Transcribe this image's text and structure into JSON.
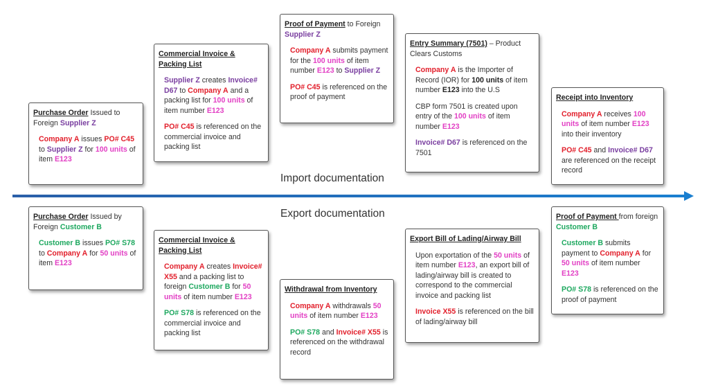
{
  "labels": {
    "import": "Import documentation",
    "export": "Export documentation"
  },
  "colors": {
    "company_a": "#e2202c",
    "supplier_z": "#7a3fa0",
    "units": "#e23fc4",
    "customer_b": "#1ea85f",
    "arrow": "#1f6fc0"
  },
  "boxes": [
    {
      "title": [
        [
          "Purchase Order",
          "u"
        ],
        [
          " Issued to Foreign ",
          ""
        ],
        [
          "Supplier Z",
          "p"
        ]
      ],
      "paras": [
        [
          [
            "Company A",
            "r"
          ],
          [
            " issues ",
            ""
          ],
          [
            "PO# C45",
            "r"
          ],
          [
            " to ",
            ""
          ],
          [
            "Supplier Z",
            "p"
          ],
          [
            " for ",
            ""
          ],
          [
            "100 units",
            "m"
          ],
          [
            " of item ",
            ""
          ],
          [
            "E123",
            "m"
          ]
        ]
      ]
    },
    {
      "title": [
        [
          "Commercial Invoice & Packing List",
          "u"
        ]
      ],
      "paras": [
        [
          [
            "Supplier Z",
            "p"
          ],
          [
            " creates ",
            ""
          ],
          [
            "Invoice# D67",
            "p"
          ],
          [
            " to ",
            ""
          ],
          [
            "Company A",
            "r"
          ],
          [
            " and a packing list for ",
            ""
          ],
          [
            "100 units",
            "m"
          ],
          [
            " of item number ",
            ""
          ],
          [
            "E123",
            "m"
          ]
        ],
        [
          [
            "PO# C45",
            "r"
          ],
          [
            " is referenced on the commercial invoice and packing list",
            ""
          ]
        ]
      ]
    },
    {
      "title": [
        [
          "Proof of Payment",
          "u"
        ],
        [
          " to Foreign ",
          ""
        ],
        [
          "Supplier Z",
          "p"
        ]
      ],
      "paras": [
        [
          [
            "Company A",
            "r"
          ],
          [
            " submits payment for the ",
            ""
          ],
          [
            "100 units",
            "m"
          ],
          [
            " of item number ",
            ""
          ],
          [
            "E123",
            "m"
          ],
          [
            " to ",
            ""
          ],
          [
            "Supplier Z",
            "p"
          ]
        ],
        [
          [
            "PO# C45",
            "r"
          ],
          [
            " is referenced on the proof of payment",
            ""
          ]
        ]
      ]
    },
    {
      "title": [
        [
          "Entry Summary (7501)",
          "u"
        ],
        [
          " – Product Clears Customs",
          ""
        ]
      ],
      "paras": [
        [
          [
            "Company A",
            "r"
          ],
          [
            " is the Importer of Record (IOR) for ",
            ""
          ],
          [
            "100 units",
            "b"
          ],
          [
            " of item number ",
            ""
          ],
          [
            "E123",
            "b"
          ],
          [
            " into the U.S",
            ""
          ]
        ],
        [
          [
            "CBP form 7501 is created upon entry of the ",
            ""
          ],
          [
            "100 units",
            "m"
          ],
          [
            " of item number ",
            ""
          ],
          [
            "E123",
            "m"
          ]
        ],
        [
          [
            "Invoice# D67",
            "p"
          ],
          [
            " is referenced on the 7501",
            ""
          ]
        ]
      ]
    },
    {
      "title": [
        [
          "Receipt into Inventory",
          "u"
        ]
      ],
      "paras": [
        [
          [
            "Company A",
            "r"
          ],
          [
            " receives ",
            ""
          ],
          [
            "100 units",
            "m"
          ],
          [
            " of item number ",
            ""
          ],
          [
            "E123",
            "m"
          ],
          [
            " into their inventory",
            ""
          ]
        ],
        [
          [
            "PO# C45",
            "r"
          ],
          [
            " and ",
            ""
          ],
          [
            "Invoice# D67",
            "p"
          ],
          [
            " are referenced on the receipt record",
            ""
          ]
        ]
      ]
    },
    {
      "title": [
        [
          "Purchase Order",
          "u"
        ],
        [
          " Issued by Foreign ",
          ""
        ],
        [
          "Customer B",
          "g"
        ]
      ],
      "paras": [
        [
          [
            "Customer B",
            "g"
          ],
          [
            " issues ",
            ""
          ],
          [
            "PO# S78",
            "g"
          ],
          [
            " to ",
            ""
          ],
          [
            "Company A",
            "r"
          ],
          [
            " for ",
            ""
          ],
          [
            "50 units",
            "m"
          ],
          [
            " of item ",
            ""
          ],
          [
            "E123",
            "m"
          ]
        ]
      ]
    },
    {
      "title": [
        [
          "Commercial Invoice & Packing List",
          "u"
        ]
      ],
      "paras": [
        [
          [
            "Company A",
            "r"
          ],
          [
            " creates ",
            ""
          ],
          [
            "Invoice# X55",
            "r"
          ],
          [
            " and a packing list to foreign ",
            ""
          ],
          [
            "Customer B",
            "g"
          ],
          [
            " for ",
            ""
          ],
          [
            "50 units",
            "m"
          ],
          [
            " of item number ",
            ""
          ],
          [
            "E123",
            "m"
          ]
        ],
        [
          [
            "PO# S78",
            "g"
          ],
          [
            " is referenced on the commercial invoice and packing list",
            ""
          ]
        ]
      ]
    },
    {
      "title": [
        [
          "Withdrawal from Inventory",
          "u"
        ]
      ],
      "paras": [
        [
          [
            "Company A",
            "r"
          ],
          [
            " withdrawals ",
            ""
          ],
          [
            "50 units",
            "m"
          ],
          [
            " of item number ",
            ""
          ],
          [
            "E123",
            "m"
          ]
        ],
        [
          [
            "PO# S78",
            "g"
          ],
          [
            " and ",
            ""
          ],
          [
            "Invoice# X55",
            "r"
          ],
          [
            " is referenced on the withdrawal record",
            ""
          ]
        ]
      ]
    },
    {
      "title": [
        [
          "Export Bill of Lading/Airway Bill",
          "u"
        ]
      ],
      "paras": [
        [
          [
            "Upon exportation of the ",
            ""
          ],
          [
            "50 units",
            "m"
          ],
          [
            " of item number ",
            ""
          ],
          [
            "E123",
            "m"
          ],
          [
            ", an export bill of lading/airway bill is created to correspond to the commercial invoice and packing list",
            ""
          ]
        ],
        [
          [
            "Invoice X55",
            "r"
          ],
          [
            " is referenced on the bill of lading/airway bill",
            ""
          ]
        ]
      ]
    },
    {
      "title": [
        [
          "Proof of Payment ",
          "u"
        ],
        [
          "from foreign ",
          ""
        ],
        [
          "Customer B",
          "g"
        ]
      ],
      "paras": [
        [
          [
            "Customer B",
            "g"
          ],
          [
            " submits payment to ",
            ""
          ],
          [
            "Company A",
            "r"
          ],
          [
            " for ",
            ""
          ],
          [
            "50 units",
            "m"
          ],
          [
            " of item number ",
            ""
          ],
          [
            "E123",
            "m"
          ]
        ],
        [
          [
            "PO# S78",
            "g"
          ],
          [
            " is referenced on the proof of payment",
            ""
          ]
        ]
      ]
    }
  ]
}
